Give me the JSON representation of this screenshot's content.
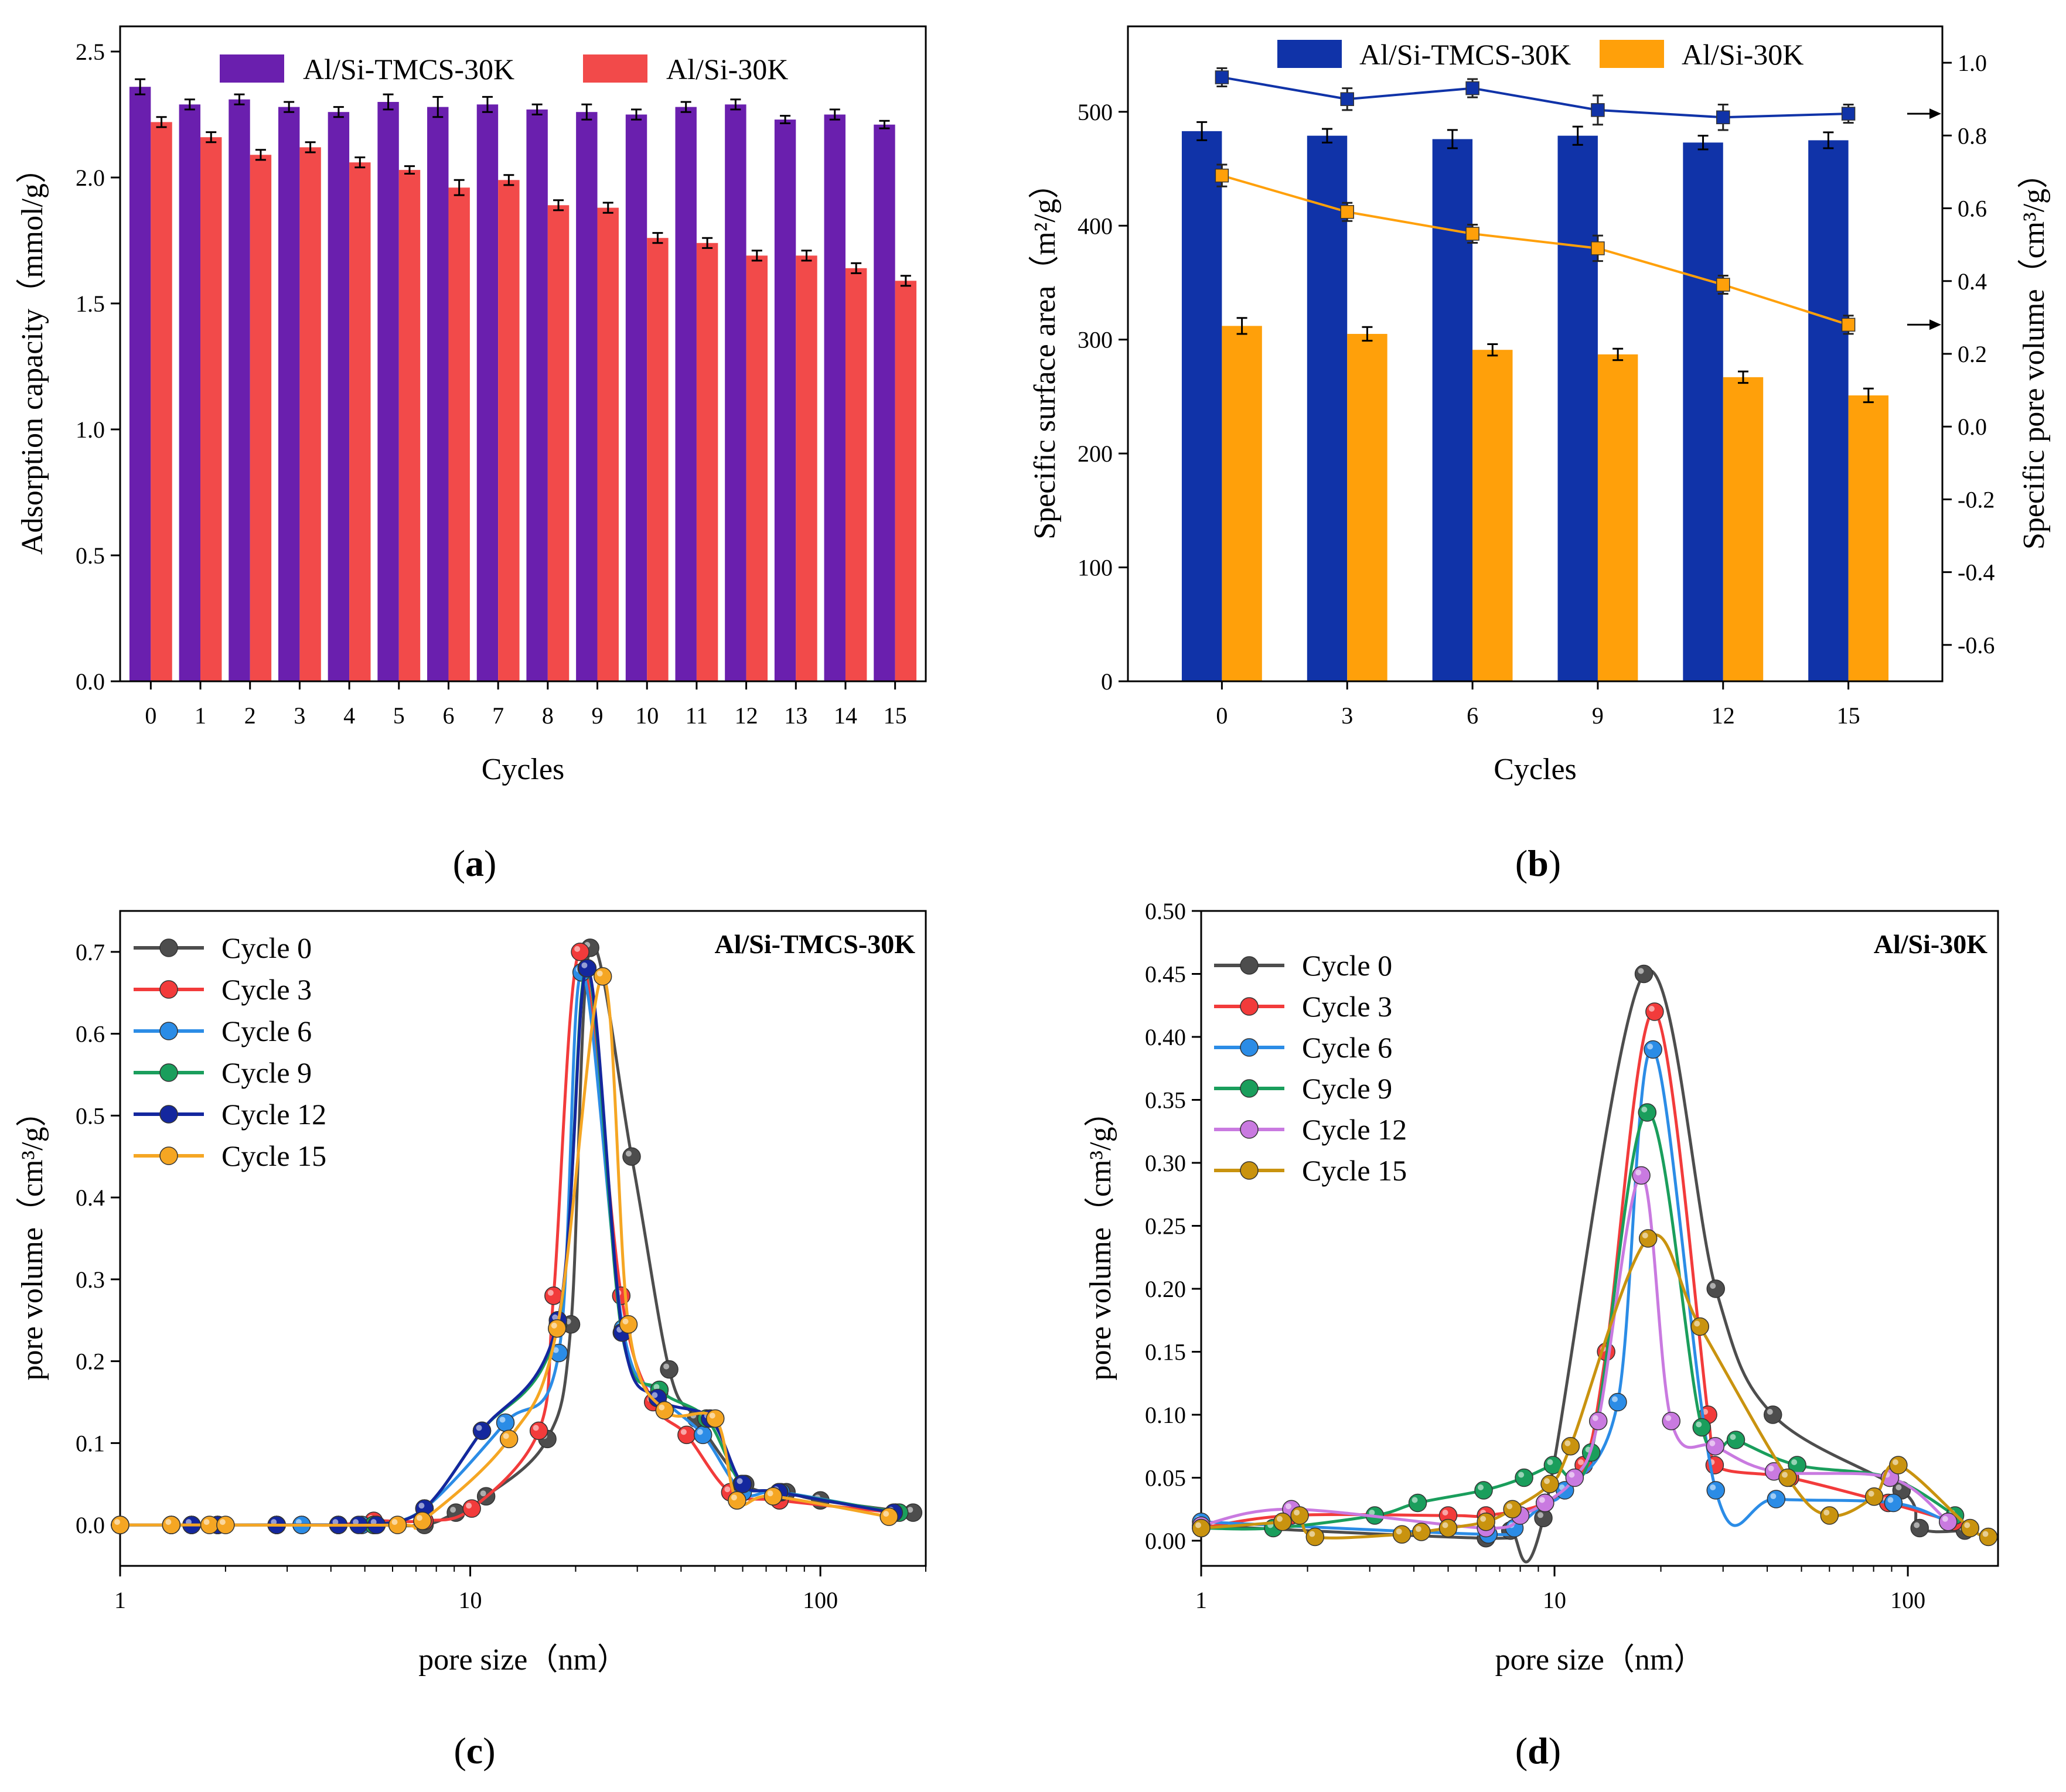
{
  "chart_data": [
    {
      "id": "a",
      "panel_label": "a",
      "type": "bar",
      "xlabel": "Cycles",
      "ylabel": "Adsorption capacity（mmol/g）",
      "categories": [
        "0",
        "1",
        "2",
        "3",
        "4",
        "5",
        "6",
        "7",
        "8",
        "9",
        "10",
        "11",
        "12",
        "13",
        "14",
        "15"
      ],
      "ylim": [
        0,
        2.6
      ],
      "yticks": [
        0.0,
        0.5,
        1.0,
        1.5,
        2.0,
        2.5
      ],
      "ytick_labels": [
        "0.0",
        "0.5",
        "1.0",
        "1.5",
        "2.0",
        "2.5"
      ],
      "legend_position": "top",
      "series": [
        {
          "name": "Al/Si-TMCS-30K",
          "color": "#6a1fae",
          "values": [
            2.36,
            2.29,
            2.31,
            2.28,
            2.26,
            2.3,
            2.28,
            2.29,
            2.27,
            2.26,
            2.25,
            2.28,
            2.29,
            2.23,
            2.25,
            2.21
          ],
          "errors": [
            0.03,
            0.02,
            0.02,
            0.02,
            0.02,
            0.03,
            0.04,
            0.03,
            0.02,
            0.03,
            0.02,
            0.02,
            0.02,
            0.015,
            0.02,
            0.015
          ]
        },
        {
          "name": "Al/Si-30K",
          "color": "#f24a4a",
          "values": [
            2.22,
            2.16,
            2.09,
            2.12,
            2.06,
            2.03,
            1.96,
            1.99,
            1.89,
            1.88,
            1.76,
            1.74,
            1.69,
            1.69,
            1.64,
            1.59
          ],
          "errors": [
            0.02,
            0.02,
            0.02,
            0.02,
            0.02,
            0.015,
            0.03,
            0.02,
            0.02,
            0.02,
            0.02,
            0.02,
            0.02,
            0.02,
            0.02,
            0.02
          ]
        }
      ]
    },
    {
      "id": "b",
      "panel_label": "b",
      "type": "bar",
      "xlabel": "Cycles",
      "ylabel": "Specific surface area",
      "ylabel_unit": "m²/g",
      "y2label": "Specific pore volume",
      "y2label_unit": "cm³/g",
      "categories": [
        "0",
        "3",
        "6",
        "9",
        "12",
        "15"
      ],
      "ylim": [
        0,
        575
      ],
      "yticks": [
        0,
        100,
        200,
        300,
        400,
        500
      ],
      "ytick_labels": [
        "0",
        "100",
        "200",
        "300",
        "400",
        "500"
      ],
      "y2lim": [
        -0.7,
        1.1
      ],
      "y2ticks": [
        -0.6,
        -0.4,
        -0.2,
        0.0,
        0.2,
        0.4,
        0.6,
        0.8,
        1.0
      ],
      "y2tick_labels": [
        "-0.6",
        "-0.4",
        "-0.2",
        "0.0",
        "0.2",
        "0.4",
        "0.6",
        "0.8",
        "1.0"
      ],
      "legend_position": "top",
      "series": [
        {
          "name": "Al/Si-TMCS-30K",
          "color": "#1033a8",
          "values": [
            483,
            479,
            476,
            479,
            473,
            475
          ],
          "errors": [
            8,
            6,
            8,
            8,
            6,
            7
          ],
          "pore_volume": [
            0.96,
            0.9,
            0.93,
            0.87,
            0.85,
            0.86
          ],
          "pore_volume_errors": [
            0.025,
            0.03,
            0.025,
            0.04,
            0.035,
            0.025
          ]
        },
        {
          "name": "Al/Si-30K",
          "color": "#ffa00a",
          "values": [
            312,
            305,
            291,
            287,
            267,
            251
          ],
          "errors": [
            7,
            6,
            5,
            5,
            5,
            6
          ],
          "pore_volume": [
            0.69,
            0.59,
            0.53,
            0.49,
            0.39,
            0.28
          ],
          "pore_volume_errors": [
            0.03,
            0.025,
            0.025,
            0.035,
            0.025,
            0.025
          ]
        }
      ]
    },
    {
      "id": "c",
      "panel_label": "c",
      "type": "line",
      "title": "Al/Si-TMCS-30K",
      "xlabel": "pore size（nm）",
      "ylabel": "pore volume（cm³/g）",
      "xscale": "log",
      "xlim": [
        1,
        200
      ],
      "xticks": [
        1,
        10,
        100
      ],
      "xtick_labels": [
        "1",
        "10",
        "100"
      ],
      "ylim": [
        -0.05,
        0.75
      ],
      "yticks": [
        0.0,
        0.1,
        0.2,
        0.3,
        0.4,
        0.5,
        0.6,
        0.7
      ],
      "ytick_labels": [
        "0.0",
        "0.1",
        "0.2",
        "0.3",
        "0.4",
        "0.5",
        "0.6",
        "0.7"
      ],
      "legend_position": "top-left",
      "series": [
        {
          "name": "Cycle 0",
          "color": "#4d4d4d",
          "x": [
            1.0,
            1.4,
            1.6,
            1.9,
            2.8,
            3.3,
            4.2,
            5.3,
            7.4,
            9.1,
            11.1,
            16.6,
            19.4,
            22.0,
            28.9,
            37.0,
            44.2,
            61.0,
            80.0,
            100.0,
            184.0
          ],
          "y": [
            0.0,
            0.0,
            0.0,
            0.0,
            0.0,
            0.0,
            0.0,
            0.0,
            0.0,
            0.015,
            0.035,
            0.105,
            0.245,
            0.705,
            0.45,
            0.19,
            0.13,
            0.05,
            0.04,
            0.03,
            0.015
          ]
        },
        {
          "name": "Cycle 3",
          "color": "#f23b3b",
          "x": [
            1.0,
            1.4,
            1.6,
            1.9,
            2.8,
            3.3,
            4.2,
            5.3,
            7.4,
            10.1,
            15.7,
            17.3,
            20.6,
            27.0,
            33.3,
            41.5,
            55.3,
            76.4,
            164.0
          ],
          "y": [
            0.0,
            0.0,
            0.0,
            0.0,
            0.0,
            0.0,
            0.0,
            0.005,
            0.005,
            0.02,
            0.115,
            0.28,
            0.7,
            0.28,
            0.15,
            0.11,
            0.04,
            0.03,
            0.015
          ]
        },
        {
          "name": "Cycle 6",
          "color": "#2b8ce6",
          "x": [
            1.0,
            1.4,
            1.6,
            1.9,
            2.8,
            3.3,
            4.2,
            4.9,
            5.3,
            7.4,
            12.6,
            17.9,
            20.8,
            27.3,
            34.6,
            46.2,
            60.0,
            77.2,
            164.0
          ],
          "y": [
            0.0,
            0.0,
            0.0,
            0.0,
            0.0,
            0.0,
            0.0,
            0.0,
            0.0,
            0.02,
            0.125,
            0.21,
            0.675,
            0.24,
            0.16,
            0.11,
            0.04,
            0.04,
            0.015
          ]
        },
        {
          "name": "Cycle 9",
          "color": "#1a9e5c",
          "x": [
            1.0,
            1.6,
            1.9,
            2.8,
            4.2,
            5.3,
            7.4,
            10.8,
            17.8,
            21.5,
            27.1,
            34.7,
            47.3,
            59.6,
            76.3,
            168.0
          ],
          "y": [
            0.0,
            0.0,
            0.0,
            0.0,
            0.0,
            0.0,
            0.02,
            0.115,
            0.245,
            0.68,
            0.235,
            0.165,
            0.13,
            0.05,
            0.04,
            0.015
          ]
        },
        {
          "name": "Cycle 12",
          "color": "#14279e",
          "x": [
            1.0,
            1.4,
            1.6,
            1.9,
            2.8,
            4.2,
            4.8,
            5.4,
            7.4,
            10.8,
            17.8,
            21.6,
            27.2,
            34.3,
            48.4,
            60.0,
            76.1,
            162.0
          ],
          "y": [
            0.0,
            0.0,
            0.0,
            0.0,
            0.0,
            0.0,
            0.0,
            0.0,
            0.02,
            0.115,
            0.25,
            0.68,
            0.235,
            0.155,
            0.13,
            0.05,
            0.04,
            0.015
          ]
        },
        {
          "name": "Cycle 15",
          "color": "#f5a623",
          "x": [
            1.0,
            1.4,
            1.8,
            2.0,
            6.2,
            7.3,
            12.9,
            17.7,
            23.9,
            28.3,
            35.9,
            50.1,
            57.8,
            73.3,
            157.0
          ],
          "y": [
            0.0,
            0.0,
            0.0,
            0.0,
            0.0,
            0.005,
            0.105,
            0.24,
            0.67,
            0.245,
            0.14,
            0.13,
            0.03,
            0.035,
            0.01
          ]
        }
      ]
    },
    {
      "id": "d",
      "panel_label": "d",
      "type": "line",
      "title": "Al/Si-30K",
      "xlabel": "pore size（nm）",
      "ylabel": "pore volume（cm³/g）",
      "xscale": "log",
      "xlim": [
        1,
        180
      ],
      "xticks": [
        1,
        10,
        100
      ],
      "xtick_labels": [
        "1",
        "10",
        "100"
      ],
      "ylim": [
        -0.02,
        0.5
      ],
      "yticks": [
        0.0,
        0.05,
        0.1,
        0.15,
        0.2,
        0.25,
        0.3,
        0.35,
        0.4,
        0.45,
        0.5
      ],
      "ytick_labels": [
        "0.00",
        "0.05",
        "0.10",
        "0.15",
        "0.20",
        "0.25",
        "0.30",
        "0.35",
        "0.40",
        "0.45",
        "0.50"
      ],
      "legend_position": "top-left",
      "series": [
        {
          "name": "Cycle 0",
          "color": "#4d4d4d",
          "x": [
            1.0,
            6.4,
            7.5,
            9.3,
            17.9,
            28.6,
            41.5,
            96.0,
            108.0,
            145.0
          ],
          "y": [
            0.012,
            0.002,
            0.008,
            0.018,
            0.45,
            0.2,
            0.1,
            0.04,
            0.01,
            0.008
          ]
        },
        {
          "name": "Cycle 3",
          "color": "#f23b3b",
          "x": [
            1.0,
            1.8,
            5.0,
            6.4,
            9.4,
            12.1,
            14.0,
            19.2,
            27.2,
            28.4,
            46.4,
            88.0,
            135.0
          ],
          "y": [
            0.01,
            0.02,
            0.02,
            0.02,
            0.03,
            0.06,
            0.15,
            0.42,
            0.1,
            0.06,
            0.05,
            0.03,
            0.015
          ]
        },
        {
          "name": "Cycle 6",
          "color": "#2b8ce6",
          "x": [
            1.0,
            6.5,
            7.7,
            9.4,
            10.7,
            15.1,
            19.0,
            28.6,
            42.4,
            91.0,
            130.0
          ],
          "y": [
            0.015,
            0.005,
            0.01,
            0.03,
            0.04,
            0.11,
            0.39,
            0.04,
            0.033,
            0.03,
            0.015
          ]
        },
        {
          "name": "Cycle 9",
          "color": "#1a9e5c",
          "x": [
            1.0,
            1.6,
            3.1,
            4.1,
            6.3,
            8.2,
            9.9,
            12.7,
            18.3,
            26.1,
            32.6,
            48.6,
            89.0,
            136.0
          ],
          "y": [
            0.01,
            0.01,
            0.02,
            0.03,
            0.04,
            0.05,
            0.06,
            0.07,
            0.34,
            0.09,
            0.08,
            0.06,
            0.05,
            0.02
          ]
        },
        {
          "name": "Cycle 12",
          "color": "#c97ae0",
          "x": [
            1.0,
            1.8,
            6.4,
            8.0,
            9.4,
            11.4,
            13.3,
            17.6,
            21.4,
            28.5,
            41.8,
            89.0,
            130.0
          ],
          "y": [
            0.012,
            0.025,
            0.01,
            0.02,
            0.03,
            0.05,
            0.095,
            0.29,
            0.095,
            0.075,
            0.055,
            0.05,
            0.015
          ]
        },
        {
          "name": "Cycle 15",
          "color": "#c9930f",
          "x": [
            1.0,
            1.7,
            1.9,
            2.1,
            3.7,
            4.2,
            5.0,
            6.4,
            7.6,
            9.7,
            11.1,
            18.4,
            25.8,
            45.7,
            60.0,
            80.3,
            94.0,
            150.0,
            169.0
          ],
          "y": [
            0.01,
            0.015,
            0.02,
            0.003,
            0.005,
            0.007,
            0.01,
            0.015,
            0.025,
            0.045,
            0.075,
            0.24,
            0.17,
            0.05,
            0.02,
            0.035,
            0.06,
            0.01,
            0.003
          ]
        }
      ]
    }
  ]
}
